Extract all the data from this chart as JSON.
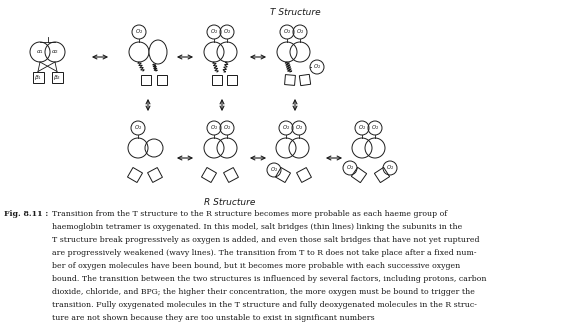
{
  "title_t": "T Structure",
  "title_r": "R Structure",
  "bg_color": "#ffffff",
  "line_color": "#1a1a1a",
  "caption_lines": [
    "Transition from the T structure to the R structure becomes more probable as each haeme group of",
    "haemoglobin tetramer is oxygenated. In this model, salt bridges (thin lines) linking the subunits in the",
    "T structure break progressively as oxygen is added, and even those salt bridges that have not yet ruptured",
    "are progressively weakened (wavy lines). The transition from T to R does not take place after a fixed num-",
    "ber of oxygen molecules have been bound, but it becomes more probable with each successive oxygen",
    "bound. The transition between the two structures is influenced by several factors, including protons, carbon",
    "dioxide, chloride, and BPG; the higher their concentration, the more oxygen must be bound to trigger the",
    "transition. Fully oxygenated molecules in the T structure and fully deoxygenated molecules in the R struc-",
    "ture are not shown because they are too unstable to exist in significant numbers"
  ],
  "caption_bold": "Fig. 8.11 :",
  "fig_width": 5.79,
  "fig_height": 3.29,
  "dpi": 100
}
